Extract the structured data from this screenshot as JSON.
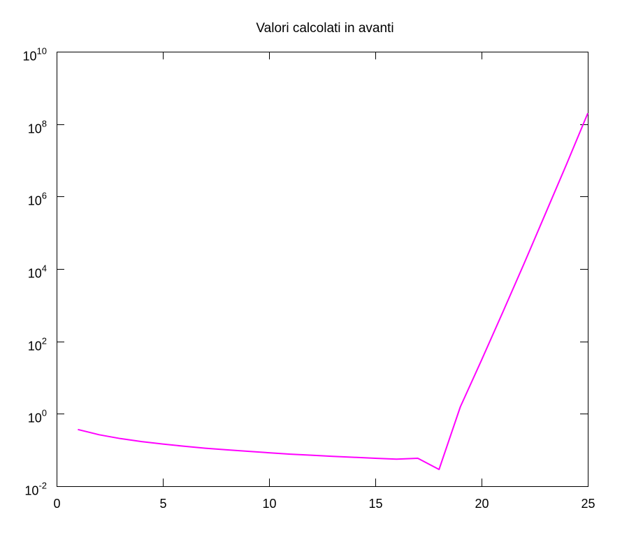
{
  "chart_data": {
    "type": "line",
    "title": "Valori calcolati in avanti",
    "xlabel": "",
    "ylabel": "",
    "xlim": [
      0,
      25
    ],
    "ylim": [
      0.01,
      10000000000
    ],
    "yscale": "log",
    "grid": false,
    "legend": "none",
    "x_ticks": [
      {
        "value": 0,
        "label": "0"
      },
      {
        "value": 5,
        "label": "5"
      },
      {
        "value": 10,
        "label": "10"
      },
      {
        "value": 15,
        "label": "15"
      },
      {
        "value": 20,
        "label": "20"
      },
      {
        "value": 25,
        "label": "25"
      }
    ],
    "y_ticks": [
      {
        "value": 0.01,
        "base": "10",
        "exp": "-2"
      },
      {
        "value": 1,
        "base": "10",
        "exp": "0"
      },
      {
        "value": 100,
        "base": "10",
        "exp": "2"
      },
      {
        "value": 10000,
        "base": "10",
        "exp": "4"
      },
      {
        "value": 1000000,
        "base": "10",
        "exp": "6"
      },
      {
        "value": 100000000,
        "base": "10",
        "exp": "8"
      },
      {
        "value": 10000000000,
        "base": "10",
        "exp": "10"
      }
    ],
    "series": [
      {
        "color": "#ff00ff",
        "x": [
          1,
          2,
          3,
          4,
          5,
          6,
          7,
          8,
          9,
          10,
          11,
          12,
          13,
          14,
          15,
          16,
          17,
          18,
          19,
          20,
          21,
          22,
          23,
          24,
          25
        ],
        "y": [
          0.368,
          0.264,
          0.207,
          0.171,
          0.146,
          0.127,
          0.112,
          0.101,
          0.092,
          0.084,
          0.077,
          0.072,
          0.067,
          0.063,
          0.059,
          0.056,
          0.059,
          0.029,
          1.55,
          30.5,
          640,
          14000,
          330000,
          7800000,
          200000000
        ]
      }
    ]
  }
}
